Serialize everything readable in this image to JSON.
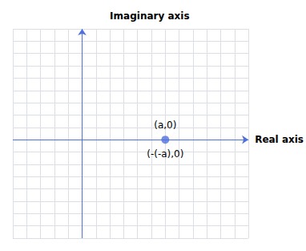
{
  "chart_data": {
    "type": "scatter",
    "x": [
      2.0
    ],
    "values": [
      0.0
    ],
    "xlabel": "Real axis",
    "ylabel": "Imaginary axis",
    "xlim": [
      -3.5,
      5.0
    ],
    "xticks": [
      -3.5,
      -3.0,
      -2.5,
      -2.0,
      -1.5,
      -1.0,
      -0.5,
      0.0,
      0.5,
      1.0,
      1.5,
      2.0,
      2.5,
      3.0,
      3.5,
      4.0,
      4.5,
      5.0
    ],
    "ylim": [
      -4.0,
      4.5
    ],
    "yticks": [
      -4.0,
      -3.5,
      -3.0,
      -2.5,
      -2.0,
      -1.5,
      -1.0,
      -0.5,
      0.0,
      0.5,
      1.0,
      1.5,
      2.0,
      2.5,
      3.0,
      3.5,
      4.0,
      4.5
    ],
    "vlines": [
      -1.0
    ],
    "hlines": [
      0.0
    ],
    "annotations": [
      {
        "text": "(a,0)",
        "x": 2.0,
        "y": 0.0,
        "position": "above"
      },
      {
        "text": "(-(-a),0)",
        "x": 2.0,
        "y": 0.0,
        "position": "below"
      }
    ],
    "grid": true,
    "tick_labels": false
  }
}
